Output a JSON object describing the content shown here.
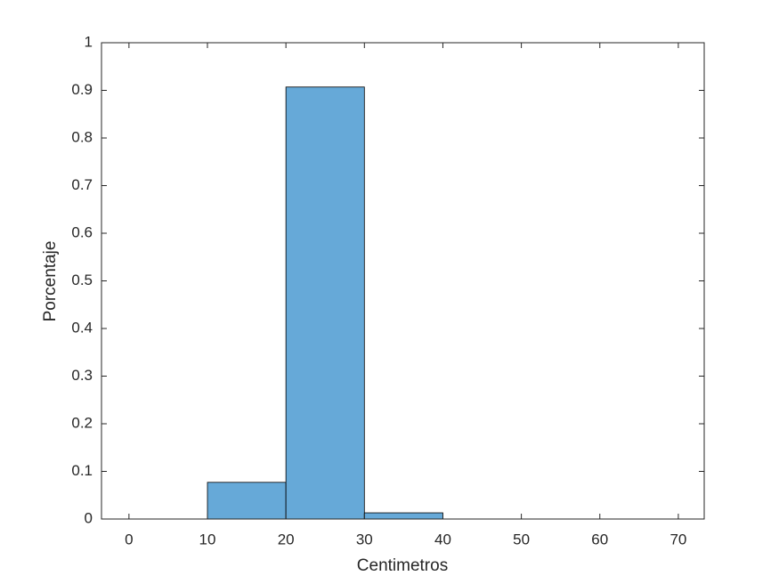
{
  "chart_data": {
    "type": "histogram",
    "x_label": "Centimetros",
    "y_label": "Porcentaje",
    "bins": [
      10,
      20,
      30,
      40
    ],
    "values": [
      0.077,
      0.907,
      0.013
    ],
    "color": "#66a9d8",
    "xlim": [
      -3.5,
      73.3
    ],
    "xticks": [
      0,
      10,
      20,
      30,
      40,
      50,
      60,
      70
    ],
    "ylim": [
      0,
      1
    ],
    "yticks": [
      0,
      0.1,
      0.2,
      0.3,
      0.4,
      0.5,
      0.6,
      0.7,
      0.8,
      0.9,
      1
    ]
  }
}
